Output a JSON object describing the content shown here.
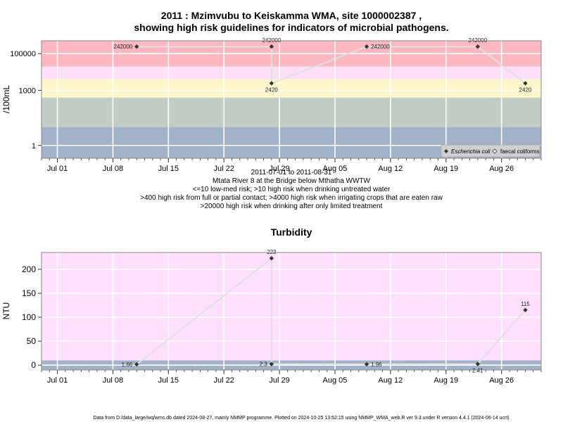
{
  "colors": {
    "risk_high": "#fdb7c1",
    "risk_mid_light": "#fde0f8",
    "risk_yellow": "#fdf7cb",
    "risk_green": "#c3cdc3",
    "risk_blue": "#a1b2c9",
    "turbidity_bg": "#fee0fe",
    "turbidity_band": "#a1b2c9",
    "line": "#e0e0e0",
    "point": "#333333"
  },
  "chart_data": [
    {
      "type": "line",
      "title_line1": "2011 : Mzimvubu to Keiskamma WMA, site 1000002387 ,",
      "title_line2": "showing high risk guidelines for indicators of microbial pathogens.",
      "ylabel": "/100mL",
      "yscale": "log",
      "ylim": [
        0.2,
        500000
      ],
      "y_ticks": [
        {
          "value": 1,
          "label": "1"
        },
        {
          "value": 1000,
          "label": "1000"
        },
        {
          "value": 100000,
          "label": "100000"
        }
      ],
      "x_ticks": [
        "Jul 01",
        "Jul 08",
        "Jul 15",
        "Jul 22",
        "Jul 29",
        "Aug 05",
        "Aug 12",
        "Aug 19",
        "Aug 26"
      ],
      "x_tick_dates": [
        "2011-07-01",
        "2011-07-08",
        "2011-07-15",
        "2011-07-22",
        "2011-07-29",
        "2011-08-05",
        "2011-08-12",
        "2011-08-19",
        "2011-08-26"
      ],
      "xlim": [
        "2011-06-29",
        "2011-08-31"
      ],
      "risk_bands": [
        {
          "from": 20000,
          "to": 500000,
          "color_key": "risk_high"
        },
        {
          "from": 4000,
          "to": 20000,
          "color_key": "risk_mid_light"
        },
        {
          "from": 400,
          "to": 4000,
          "color_key": "risk_yellow"
        },
        {
          "from": 10,
          "to": 400,
          "color_key": "risk_green"
        },
        {
          "from": 0.2,
          "to": 10,
          "color_key": "risk_blue"
        }
      ],
      "series": [
        {
          "name": "Escherichia coli",
          "points": [
            {
              "x": "2011-07-11",
              "y": 242000,
              "label": "242000",
              "label_pos": "left"
            },
            {
              "x": "2011-07-28",
              "y": 242000,
              "label": "242000",
              "label_pos": "above"
            },
            {
              "x": "2011-07-28",
              "y": 2420,
              "label": "2420",
              "label_pos": "below"
            },
            {
              "x": "2011-08-09",
              "y": 242000,
              "label": "242000",
              "label_pos": "right"
            },
            {
              "x": "2011-08-23",
              "y": 242000,
              "label": "242000",
              "label_pos": "above"
            },
            {
              "x": "2011-08-29",
              "y": 2420,
              "label": "2420",
              "label_pos": "below"
            }
          ]
        }
      ],
      "legend": [
        {
          "label": "Escherichia coli",
          "marker": "filled-diamond"
        },
        {
          "label": "faecal coliforms",
          "marker": "open-diamond"
        }
      ],
      "legend_position": "bottom-right",
      "caption_lines": [
        "2011-07-01 to 2011-08-31",
        "Mtata River 8 at the Bridge below Mthatha WWTW",
        "<=10 low-med risk; >10 high risk when drinking untreated water",
        ">400 high risk from full or partial contact; >4000 high risk when irrigating crops that are eaten raw",
        ">20000 high risk when drinking after only limited treatment"
      ]
    },
    {
      "type": "line",
      "title": "Turbidity",
      "ylabel": "NTU",
      "ylim": [
        -10,
        235
      ],
      "y_ticks": [
        {
          "value": 0,
          "label": "0"
        },
        {
          "value": 50,
          "label": "50"
        },
        {
          "value": 100,
          "label": "100"
        },
        {
          "value": 150,
          "label": "150"
        },
        {
          "value": 200,
          "label": "200"
        }
      ],
      "x_ticks": [
        "Jul 01",
        "Jul 08",
        "Jul 15",
        "Jul 22",
        "Jul 29",
        "Aug 05",
        "Aug 12",
        "Aug 19",
        "Aug 26"
      ],
      "x_tick_dates": [
        "2011-07-01",
        "2011-07-08",
        "2011-07-15",
        "2011-07-22",
        "2011-07-29",
        "2011-08-05",
        "2011-08-12",
        "2011-08-19",
        "2011-08-26"
      ],
      "xlim": [
        "2011-06-29",
        "2011-08-31"
      ],
      "bands": [
        {
          "from": -10,
          "to": 10,
          "color_key": "turbidity_band"
        },
        {
          "from": 10,
          "to": 235,
          "color_key": "turbidity_bg"
        }
      ],
      "series": [
        {
          "name": "",
          "points": [
            {
              "x": "2011-07-11",
              "y": 1.66,
              "label": "1.66",
              "label_pos": "left"
            },
            {
              "x": "2011-07-28",
              "y": 223,
              "label": "223",
              "label_pos": "above"
            },
            {
              "x": "2011-07-28",
              "y": 2.3,
              "label": "2.3",
              "label_pos": "left"
            },
            {
              "x": "2011-08-09",
              "y": 1.96,
              "label": "1.96",
              "label_pos": "right"
            },
            {
              "x": "2011-08-23",
              "y": 2.41,
              "label": "2.41",
              "label_pos": "below"
            },
            {
              "x": "2011-08-29",
              "y": 115,
              "label": "115",
              "label_pos": "above"
            }
          ]
        }
      ]
    }
  ],
  "footer": "Data from D:/data_large/wq/wms.db dated 2024-08-27, mainly NMMP programme. Plotted on 2024-10-25 13:52:15 using NMMP_WMA_web.R ver 9.3 under R version 4.4.1 (2024-06-14 ucrt)"
}
